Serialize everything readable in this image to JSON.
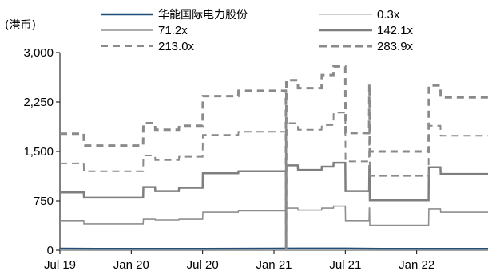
{
  "chart_data": {
    "type": "line",
    "title": "",
    "xlabel": "",
    "ylabel": "",
    "unit_label": "(港币)",
    "y_ticks": [
      "0",
      "750",
      "1,500",
      "2,250",
      "3,000"
    ],
    "x_ticks": [
      "Jul 19",
      "Jan 20",
      "Jul 20",
      "Jan 21",
      "Jul 21",
      "Jan 22"
    ],
    "ylim": [
      0,
      3000
    ],
    "xlim": [
      "2019-07",
      "2022-07"
    ],
    "grid": false,
    "legend_position": "top",
    "series": [
      {
        "name": "华能国际电力股份",
        "color": "#1f4e79",
        "style": "solid-thick",
        "points": [
          [
            "2019-07",
            24
          ],
          [
            "2019-10",
            22
          ],
          [
            "2020-01",
            20
          ],
          [
            "2020-04",
            21
          ],
          [
            "2020-07",
            22
          ],
          [
            "2020-10",
            23
          ],
          [
            "2021-01",
            24
          ],
          [
            "2021-03",
            25
          ],
          [
            "2021-07",
            26
          ],
          [
            "2021-10",
            22
          ],
          [
            "2022-01",
            20
          ],
          [
            "2022-04",
            21
          ],
          [
            "2022-07",
            21
          ]
        ]
      },
      {
        "name": "0.3x",
        "color": "#9b9b9b",
        "style": "solid-thin",
        "points": [
          [
            "2019-07",
            2
          ],
          [
            "2020-01",
            2
          ],
          [
            "2020-07",
            2
          ],
          [
            "2021-01",
            2
          ],
          [
            "2021-07",
            2
          ],
          [
            "2022-01",
            2
          ],
          [
            "2022-07",
            2
          ]
        ]
      },
      {
        "name": "71.2x",
        "color": "#8f8f8f",
        "style": "solid",
        "points": [
          [
            "2019-07",
            450
          ],
          [
            "2019-09",
            450
          ],
          [
            "2019-09",
            400
          ],
          [
            "2019-12",
            400
          ],
          [
            "2020-02",
            400
          ],
          [
            "2020-02",
            470
          ],
          [
            "2020-03",
            470
          ],
          [
            "2020-03",
            460
          ],
          [
            "2020-05",
            460
          ],
          [
            "2020-05",
            470
          ],
          [
            "2020-07",
            470
          ],
          [
            "2020-07",
            580
          ],
          [
            "2020-10",
            580
          ],
          [
            "2020-10",
            600
          ],
          [
            "2021-02",
            600
          ],
          [
            "2021-02",
            10
          ],
          [
            "2021-02",
            640
          ],
          [
            "2021-03",
            640
          ],
          [
            "2021-03",
            610
          ],
          [
            "2021-05",
            610
          ],
          [
            "2021-05",
            640
          ],
          [
            "2021-06",
            640
          ],
          [
            "2021-06",
            670
          ],
          [
            "2021-07",
            670
          ],
          [
            "2021-07",
            450
          ],
          [
            "2021-08",
            450
          ],
          [
            "2021-09",
            450
          ],
          [
            "2021-09",
            640
          ],
          [
            "2021-09",
            640
          ],
          [
            "2021-09",
            380
          ],
          [
            "2022-01",
            380
          ],
          [
            "2022-01",
            380
          ],
          [
            "2022-02",
            380
          ],
          [
            "2022-02",
            630
          ],
          [
            "2022-03",
            630
          ],
          [
            "2022-03",
            580
          ],
          [
            "2022-07",
            580
          ]
        ]
      },
      {
        "name": "142.1x",
        "color": "#7f7f7f",
        "style": "solid-thick",
        "points": [
          [
            "2019-07",
            880
          ],
          [
            "2019-09",
            880
          ],
          [
            "2019-09",
            800
          ],
          [
            "2019-12",
            800
          ],
          [
            "2020-02",
            800
          ],
          [
            "2020-02",
            960
          ],
          [
            "2020-03",
            960
          ],
          [
            "2020-03",
            900
          ],
          [
            "2020-05",
            900
          ],
          [
            "2020-05",
            950
          ],
          [
            "2020-07",
            950
          ],
          [
            "2020-07",
            1170
          ],
          [
            "2020-10",
            1170
          ],
          [
            "2020-10",
            1200
          ],
          [
            "2021-02",
            1200
          ],
          [
            "2021-02",
            15
          ],
          [
            "2021-02",
            1290
          ],
          [
            "2021-03",
            1290
          ],
          [
            "2021-03",
            1220
          ],
          [
            "2021-05",
            1220
          ],
          [
            "2021-05",
            1270
          ],
          [
            "2021-06",
            1270
          ],
          [
            "2021-06",
            1330
          ],
          [
            "2021-07",
            1330
          ],
          [
            "2021-07",
            900
          ],
          [
            "2021-08",
            900
          ],
          [
            "2021-09",
            900
          ],
          [
            "2021-09",
            1280
          ],
          [
            "2021-09",
            1280
          ],
          [
            "2021-09",
            760
          ],
          [
            "2022-01",
            760
          ],
          [
            "2022-01",
            760
          ],
          [
            "2022-02",
            760
          ],
          [
            "2022-02",
            1260
          ],
          [
            "2022-03",
            1260
          ],
          [
            "2022-03",
            1160
          ],
          [
            "2022-07",
            1160
          ]
        ]
      },
      {
        "name": "213.0x",
        "color": "#8a8a8a",
        "style": "dashed",
        "points": [
          [
            "2019-07",
            1320
          ],
          [
            "2019-09",
            1320
          ],
          [
            "2019-09",
            1200
          ],
          [
            "2019-12",
            1200
          ],
          [
            "2020-02",
            1200
          ],
          [
            "2020-02",
            1440
          ],
          [
            "2020-03",
            1440
          ],
          [
            "2020-03",
            1370
          ],
          [
            "2020-05",
            1370
          ],
          [
            "2020-05",
            1420
          ],
          [
            "2020-07",
            1420
          ],
          [
            "2020-07",
            1750
          ],
          [
            "2020-10",
            1750
          ],
          [
            "2020-10",
            1800
          ],
          [
            "2021-02",
            1800
          ],
          [
            "2021-02",
            20
          ],
          [
            "2021-02",
            1930
          ],
          [
            "2021-03",
            1930
          ],
          [
            "2021-03",
            1830
          ],
          [
            "2021-05",
            1830
          ],
          [
            "2021-05",
            1900
          ],
          [
            "2021-06",
            1900
          ],
          [
            "2021-06",
            2090
          ],
          [
            "2021-07",
            2090
          ],
          [
            "2021-07",
            1350
          ],
          [
            "2021-08",
            1350
          ],
          [
            "2021-09",
            1350
          ],
          [
            "2021-09",
            1920
          ],
          [
            "2021-09",
            1920
          ],
          [
            "2021-09",
            1130
          ],
          [
            "2022-01",
            1130
          ],
          [
            "2022-01",
            1130
          ],
          [
            "2022-02",
            1130
          ],
          [
            "2022-02",
            1890
          ],
          [
            "2022-03",
            1890
          ],
          [
            "2022-03",
            1740
          ],
          [
            "2022-07",
            1740
          ]
        ]
      },
      {
        "name": "283.9x",
        "color": "#8a8a8a",
        "style": "dashed-thick",
        "points": [
          [
            "2019-07",
            1770
          ],
          [
            "2019-09",
            1770
          ],
          [
            "2019-09",
            1590
          ],
          [
            "2019-12",
            1590
          ],
          [
            "2020-02",
            1590
          ],
          [
            "2020-02",
            1930
          ],
          [
            "2020-03",
            1930
          ],
          [
            "2020-03",
            1830
          ],
          [
            "2020-05",
            1830
          ],
          [
            "2020-05",
            1890
          ],
          [
            "2020-07",
            1890
          ],
          [
            "2020-07",
            2340
          ],
          [
            "2020-10",
            2340
          ],
          [
            "2020-10",
            2420
          ],
          [
            "2021-02",
            2420
          ],
          [
            "2021-02",
            25
          ],
          [
            "2021-02",
            2580
          ],
          [
            "2021-03",
            2580
          ],
          [
            "2021-03",
            2460
          ],
          [
            "2021-05",
            2460
          ],
          [
            "2021-05",
            2660
          ],
          [
            "2021-06",
            2660
          ],
          [
            "2021-06",
            2790
          ],
          [
            "2021-07",
            2790
          ],
          [
            "2021-07",
            1780
          ],
          [
            "2021-08",
            1780
          ],
          [
            "2021-09",
            1780
          ],
          [
            "2021-09",
            2520
          ],
          [
            "2021-09",
            2520
          ],
          [
            "2021-09",
            1500
          ],
          [
            "2022-01",
            1500
          ],
          [
            "2022-01",
            1500
          ],
          [
            "2022-02",
            1500
          ],
          [
            "2022-02",
            2500
          ],
          [
            "2022-03",
            2500
          ],
          [
            "2022-03",
            2320
          ],
          [
            "2022-07",
            2320
          ]
        ]
      }
    ]
  }
}
